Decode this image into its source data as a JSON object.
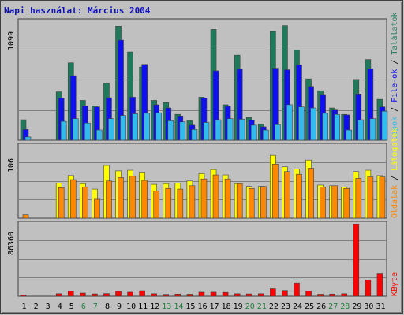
{
  "chart_data": {
    "type": "bar",
    "title": "Napi használat: Március 2004",
    "categories": [
      "1",
      "2",
      "3",
      "4",
      "5",
      "6",
      "7",
      "8",
      "9",
      "10",
      "11",
      "12",
      "13",
      "14",
      "15",
      "16",
      "17",
      "18",
      "19",
      "20",
      "21",
      "22",
      "23",
      "24",
      "25",
      "26",
      "27",
      "28",
      "29",
      "30",
      "31"
    ],
    "weekend_days": [
      "6",
      "7",
      "13",
      "14",
      "20",
      "21",
      "27",
      "28"
    ],
    "panels": [
      {
        "id": "hits",
        "ymax_label": "1099",
        "ymax": 1099,
        "series": [
          {
            "name": "Találatok",
            "color": "#1f7a5c",
            "values": [
              190,
              0,
              0,
              450,
              720,
              370,
              320,
              530,
              1060,
              820,
              680,
              370,
              350,
              240,
              180,
              400,
              1030,
              330,
              790,
              210,
              150,
              1010,
              1065,
              840,
              570,
              460,
              300,
              240,
              565,
              750,
              380
            ]
          },
          {
            "name": "File-ok",
            "color": "#1010ee",
            "values": [
              100,
              0,
              0,
              390,
              600,
              320,
              310,
              395,
              930,
              400,
              705,
              330,
              300,
              225,
              140,
              390,
              645,
              315,
              660,
              185,
              125,
              670,
              655,
              700,
              500,
              425,
              280,
              235,
              430,
              665,
              310
            ]
          },
          {
            "name": "Lapok",
            "color": "#33bbee",
            "values": [
              30,
              0,
              0,
              175,
              200,
              160,
              95,
              200,
              230,
              245,
              250,
              255,
              180,
              170,
              100,
              165,
              190,
              200,
              195,
              140,
              95,
              145,
              330,
              310,
              300,
              250,
              240,
              95,
              190,
              200,
              270
            ]
          }
        ]
      },
      {
        "id": "visits",
        "ymax_label": "106",
        "ymax": 106,
        "series": [
          {
            "name": "Látogatók",
            "color": "#ffff00",
            "values": [
              0,
              0,
              0,
              52,
              63,
              51,
              43,
              78,
              70,
              71,
              67,
              50,
              51,
              52,
              55,
              66,
              72,
              64,
              51,
              47,
              47,
              93,
              76,
              73,
              86,
              49,
              48,
              46,
              69,
              71,
              63
            ]
          },
          {
            "name": "Oldalak",
            "color": "#ff8800",
            "values": [
              5,
              0,
              0,
              45,
              57,
              46,
              28,
              55,
              60,
              62,
              56,
              40,
              44,
              43,
              48,
              58,
              64,
              58,
              51,
              44,
              47,
              80,
              69,
              65,
              74,
              46,
              48,
              44,
              59,
              61,
              61
            ]
          }
        ]
      },
      {
        "id": "kbytes",
        "ymax_label": "86360",
        "ymax": 86360,
        "series": [
          {
            "name": "KByte",
            "color": "#ff0000",
            "values": [
              1200,
              0,
              0,
              3000,
              6000,
              3800,
              2800,
              3200,
              5800,
              4800,
              6600,
              3000,
              2200,
              2600,
              2400,
              4800,
              4800,
              4600,
              3000,
              2800,
              3000,
              9000,
              6900,
              16000,
              6000,
              2400,
              2600,
              3000,
              86360,
              19500,
              27000
            ]
          }
        ]
      }
    ],
    "right_labels": {
      "top": [
        "Találatok",
        "File-ok",
        "Lapok"
      ],
      "middle": [
        "Oldalak",
        "Látogatók"
      ],
      "bottom": [
        "KByte"
      ]
    },
    "label_separator": " / "
  }
}
